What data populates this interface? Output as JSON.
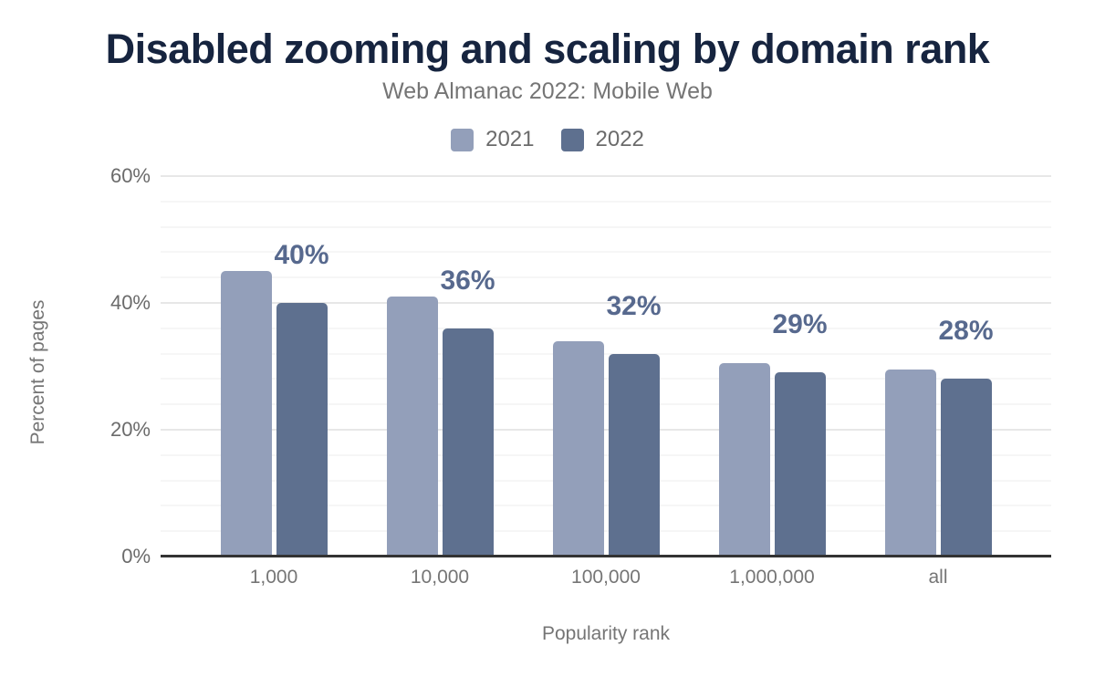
{
  "figure": {
    "title": "Disabled zooming and scaling by domain rank",
    "subtitle": "Web Almanac 2022: Mobile Web"
  },
  "chart_data": {
    "type": "bar",
    "title": "Disabled zooming and scaling by domain rank",
    "subtitle": "Web Almanac 2022: Mobile Web",
    "categories": [
      "1,000",
      "10,000",
      "100,000",
      "1,000,000",
      "all"
    ],
    "series": [
      {
        "name": "2021",
        "color": "#939fba",
        "values": [
          45,
          41,
          34,
          30.5,
          29.5
        ]
      },
      {
        "name": "2022",
        "color": "#5e708f",
        "values": [
          40,
          36,
          32,
          29,
          28
        ],
        "data_labels": [
          "40%",
          "36%",
          "32%",
          "29%",
          "28%"
        ]
      }
    ],
    "xlabel": "Popularity rank",
    "ylabel": "Percent of pages",
    "ylim": [
      0,
      60
    ],
    "yticks": [
      {
        "value": 0,
        "label": "0%"
      },
      {
        "value": 20,
        "label": "20%"
      },
      {
        "value": 40,
        "label": "40%"
      },
      {
        "value": 60,
        "label": "60%"
      }
    ],
    "grid": {
      "major_interval": 20,
      "minor_interval": 4
    },
    "legend_position": "top",
    "colors": {
      "title": "#16243f",
      "subtitle_text": "#757575",
      "axis_text": "#6b6b6b",
      "value_label": "#57698e",
      "gridline_major": "#e7e7e7",
      "gridline_minor": "#f6f6f6",
      "axis_line": "#333333"
    }
  }
}
